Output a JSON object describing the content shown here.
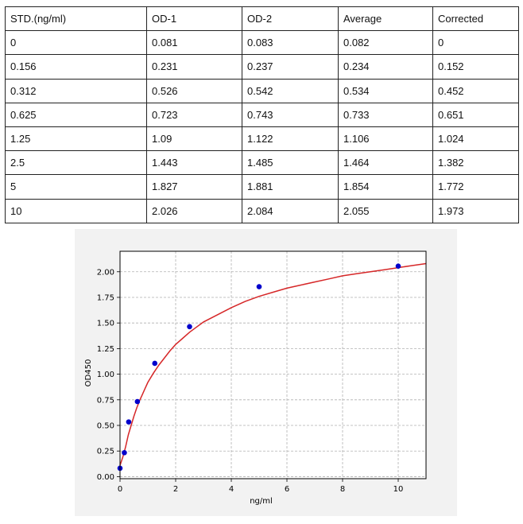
{
  "table": {
    "headers": [
      "STD.(ng/ml)",
      "OD-1",
      "OD-2",
      "Average",
      "Corrected"
    ],
    "rows": [
      [
        "0",
        "0.081",
        "0.083",
        "0.082",
        "0"
      ],
      [
        "0.156",
        "0.231",
        "0.237",
        "0.234",
        "0.152"
      ],
      [
        "0.312",
        "0.526",
        "0.542",
        "0.534",
        "0.452"
      ],
      [
        "0.625",
        "0.723",
        "0.743",
        "0.733",
        "0.651"
      ],
      [
        "1.25",
        "1.09",
        "1.122",
        "1.106",
        "1.024"
      ],
      [
        "2.5",
        "1.443",
        "1.485",
        "1.464",
        "1.382"
      ],
      [
        "5",
        "1.827",
        "1.881",
        "1.854",
        "1.772"
      ],
      [
        "10",
        "2.026",
        "2.084",
        "2.055",
        "1.973"
      ]
    ]
  },
  "chart_data": {
    "type": "scatter",
    "xlabel": "ng/ml",
    "ylabel": "OD450",
    "xlim": [
      0,
      11
    ],
    "ylim": [
      -0.02,
      2.2
    ],
    "xticks": [
      "0",
      "2",
      "4",
      "6",
      "8",
      "10"
    ],
    "yticks": [
      "0.00",
      "0.25",
      "0.50",
      "0.75",
      "1.00",
      "1.25",
      "1.50",
      "1.75",
      "2.00"
    ],
    "grid": true,
    "points": {
      "x": [
        0,
        0.156,
        0.312,
        0.625,
        1.25,
        2.5,
        5,
        10
      ],
      "y": [
        0.082,
        0.234,
        0.534,
        0.733,
        1.106,
        1.464,
        1.854,
        2.055
      ]
    },
    "curve": {
      "x": [
        0,
        0.1,
        0.2,
        0.3,
        0.4,
        0.5,
        0.6,
        0.7,
        0.8,
        0.9,
        1.0,
        1.2,
        1.4,
        1.6,
        1.8,
        2.0,
        2.25,
        2.5,
        2.75,
        3.0,
        3.5,
        4.0,
        4.5,
        5.0,
        5.5,
        6.0,
        6.5,
        7.0,
        7.5,
        8.0,
        8.5,
        9.0,
        9.5,
        10.0,
        10.5,
        11.0
      ],
      "y": [
        0.11,
        0.19,
        0.29,
        0.41,
        0.5,
        0.59,
        0.67,
        0.74,
        0.8,
        0.86,
        0.92,
        1.01,
        1.09,
        1.16,
        1.23,
        1.29,
        1.35,
        1.41,
        1.46,
        1.51,
        1.58,
        1.65,
        1.71,
        1.76,
        1.8,
        1.84,
        1.87,
        1.9,
        1.93,
        1.96,
        1.98,
        2.0,
        2.02,
        2.04,
        2.06,
        2.08
      ]
    },
    "colors": {
      "points": "#0000cc",
      "curve": "#d62728",
      "grid": "#b0b0b0"
    }
  }
}
